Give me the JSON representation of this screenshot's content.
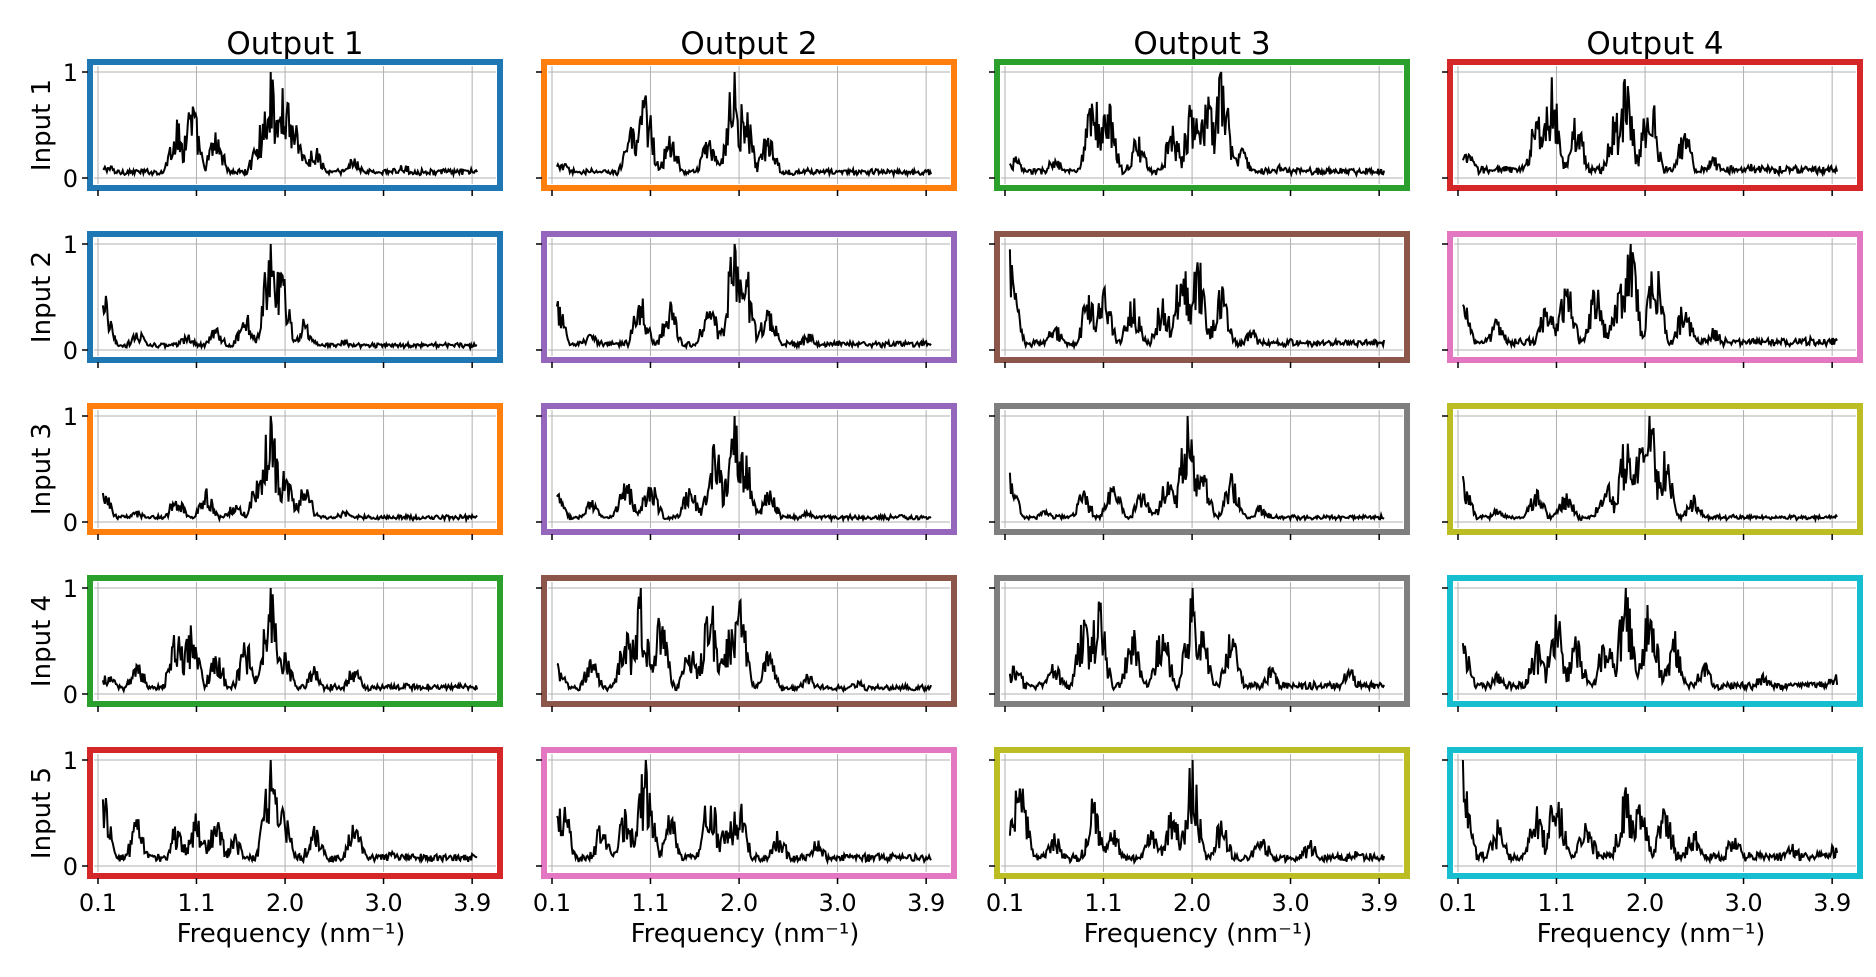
{
  "figure": {
    "xlabel": "Frequency (nm⁻¹)",
    "ylabel_prefix": "Input",
    "col_titles": [
      "Output 1",
      "Output 2",
      "Output 3",
      "Output 4"
    ],
    "row_labels": [
      "Input 1",
      "Input 2",
      "Input 3",
      "Input 4",
      "Input 5"
    ],
    "xticks": [
      "0.1",
      "1.1",
      "2.0",
      "3.0",
      "3.9"
    ],
    "yticks": [
      "0",
      "1"
    ]
  },
  "colors": {
    "blue": "#1f77b4",
    "orange": "#ff7f0e",
    "green": "#2ca02c",
    "red": "#d62728",
    "purple": "#9467bd",
    "brown": "#8c564b",
    "pink": "#e377c2",
    "gray": "#7f7f7f",
    "olive": "#bcbd22",
    "cyan": "#17becf",
    "line": "#000000",
    "grid": "#b0b0b0"
  },
  "chart_data": {
    "type": "line",
    "grid": true,
    "xlim": [
      0.1,
      4.0
    ],
    "ylim": [
      0,
      1
    ],
    "x_tick_values": [
      0.1,
      1.1,
      2.0,
      3.0,
      3.9
    ],
    "panel_border_colors": [
      [
        "blue",
        "orange",
        "green",
        "red"
      ],
      [
        "blue",
        "purple",
        "brown",
        "pink"
      ],
      [
        "orange",
        "purple",
        "gray",
        "olive"
      ],
      [
        "green",
        "brown",
        "gray",
        "cyan"
      ],
      [
        "red",
        "pink",
        "olive",
        "cyan"
      ]
    ],
    "panels": [
      [
        {
          "peaks": [
            [
              0.2,
              0.12
            ],
            [
              0.9,
              0.55
            ],
            [
              1.05,
              0.75
            ],
            [
              1.3,
              0.45
            ],
            [
              1.75,
              0.5
            ],
            [
              1.85,
              1.0
            ],
            [
              2.0,
              0.95
            ],
            [
              2.1,
              0.6
            ],
            [
              2.3,
              0.3
            ],
            [
              2.7,
              0.2
            ],
            [
              3.2,
              0.12
            ]
          ],
          "base": 0.07
        },
        {
          "peaks": [
            [
              0.2,
              0.15
            ],
            [
              0.9,
              0.5
            ],
            [
              1.05,
              0.8
            ],
            [
              1.3,
              0.4
            ],
            [
              1.7,
              0.45
            ],
            [
              1.95,
              1.0
            ],
            [
              2.05,
              0.75
            ],
            [
              2.3,
              0.45
            ],
            [
              2.7,
              0.1
            ]
          ],
          "base": 0.07
        },
        {
          "peaks": [
            [
              0.2,
              0.2
            ],
            [
              0.6,
              0.2
            ],
            [
              1.0,
              0.85
            ],
            [
              1.15,
              0.75
            ],
            [
              1.45,
              0.4
            ],
            [
              1.8,
              0.5
            ],
            [
              2.0,
              0.75
            ],
            [
              2.15,
              0.85
            ],
            [
              2.3,
              1.0
            ],
            [
              2.5,
              0.3
            ],
            [
              2.9,
              0.12
            ]
          ],
          "base": 0.08
        },
        {
          "peaks": [
            [
              0.2,
              0.25
            ],
            [
              0.9,
              0.6
            ],
            [
              1.05,
              0.95
            ],
            [
              1.3,
              0.6
            ],
            [
              1.7,
              0.65
            ],
            [
              1.8,
              0.95
            ],
            [
              2.05,
              0.9
            ],
            [
              2.4,
              0.45
            ],
            [
              2.7,
              0.2
            ],
            [
              3.1,
              0.12
            ]
          ],
          "base": 0.1
        }
      ],
      [
        {
          "peaks": [
            [
              0.15,
              0.55
            ],
            [
              0.5,
              0.18
            ],
            [
              1.0,
              0.15
            ],
            [
              1.3,
              0.2
            ],
            [
              1.6,
              0.35
            ],
            [
              1.85,
              1.0
            ],
            [
              1.95,
              0.95
            ],
            [
              2.2,
              0.3
            ],
            [
              2.6,
              0.1
            ]
          ],
          "base": 0.05
        },
        {
          "peaks": [
            [
              0.15,
              0.5
            ],
            [
              0.5,
              0.15
            ],
            [
              1.0,
              0.5
            ],
            [
              1.3,
              0.45
            ],
            [
              1.7,
              0.5
            ],
            [
              1.95,
              1.0
            ],
            [
              2.05,
              0.95
            ],
            [
              2.3,
              0.45
            ],
            [
              2.7,
              0.15
            ]
          ],
          "base": 0.07
        },
        {
          "peaks": [
            [
              0.15,
              0.95
            ],
            [
              0.6,
              0.25
            ],
            [
              0.95,
              0.55
            ],
            [
              1.1,
              0.65
            ],
            [
              1.4,
              0.5
            ],
            [
              1.7,
              0.5
            ],
            [
              1.9,
              0.9
            ],
            [
              2.05,
              0.95
            ],
            [
              2.3,
              0.7
            ],
            [
              2.6,
              0.2
            ],
            [
              3.0,
              0.1
            ]
          ],
          "base": 0.08
        },
        {
          "peaks": [
            [
              0.15,
              0.5
            ],
            [
              0.5,
              0.3
            ],
            [
              1.0,
              0.45
            ],
            [
              1.2,
              0.7
            ],
            [
              1.5,
              0.6
            ],
            [
              1.75,
              0.8
            ],
            [
              1.85,
              1.0
            ],
            [
              2.1,
              0.85
            ],
            [
              2.4,
              0.45
            ],
            [
              2.7,
              0.2
            ]
          ],
          "base": 0.1
        }
      ],
      [
        {
          "peaks": [
            [
              0.15,
              0.35
            ],
            [
              0.5,
              0.1
            ],
            [
              0.9,
              0.25
            ],
            [
              1.2,
              0.3
            ],
            [
              1.5,
              0.2
            ],
            [
              1.75,
              0.6
            ],
            [
              1.85,
              1.0
            ],
            [
              2.0,
              0.5
            ],
            [
              2.2,
              0.35
            ],
            [
              2.6,
              0.1
            ]
          ],
          "base": 0.05
        },
        {
          "peaks": [
            [
              0.15,
              0.3
            ],
            [
              0.5,
              0.2
            ],
            [
              0.85,
              0.4
            ],
            [
              1.1,
              0.4
            ],
            [
              1.5,
              0.35
            ],
            [
              1.75,
              0.8
            ],
            [
              1.95,
              1.0
            ],
            [
              2.05,
              0.7
            ],
            [
              2.3,
              0.3
            ],
            [
              2.7,
              0.1
            ]
          ],
          "base": 0.05
        },
        {
          "peaks": [
            [
              0.15,
              0.55
            ],
            [
              0.5,
              0.1
            ],
            [
              0.9,
              0.3
            ],
            [
              1.2,
              0.35
            ],
            [
              1.5,
              0.3
            ],
            [
              1.75,
              0.45
            ],
            [
              1.95,
              1.0
            ],
            [
              2.1,
              0.55
            ],
            [
              2.4,
              0.45
            ],
            [
              2.7,
              0.15
            ]
          ],
          "base": 0.05
        },
        {
          "peaks": [
            [
              0.15,
              0.5
            ],
            [
              0.5,
              0.12
            ],
            [
              0.9,
              0.3
            ],
            [
              1.2,
              0.3
            ],
            [
              1.6,
              0.4
            ],
            [
              1.8,
              0.8
            ],
            [
              1.95,
              0.75
            ],
            [
              2.05,
              1.0
            ],
            [
              2.2,
              0.7
            ],
            [
              2.5,
              0.25
            ]
          ],
          "base": 0.05
        }
      ],
      [
        {
          "peaks": [
            [
              0.2,
              0.2
            ],
            [
              0.5,
              0.3
            ],
            [
              0.9,
              0.6
            ],
            [
              1.05,
              0.65
            ],
            [
              1.3,
              0.4
            ],
            [
              1.6,
              0.5
            ],
            [
              1.85,
              1.0
            ],
            [
              2.0,
              0.4
            ],
            [
              2.3,
              0.25
            ],
            [
              2.7,
              0.25
            ],
            [
              3.2,
              0.1
            ]
          ],
          "base": 0.08
        },
        {
          "peaks": [
            [
              0.15,
              0.35
            ],
            [
              0.5,
              0.35
            ],
            [
              0.85,
              0.6
            ],
            [
              1.0,
              1.0
            ],
            [
              1.2,
              0.8
            ],
            [
              1.5,
              0.45
            ],
            [
              1.7,
              0.95
            ],
            [
              1.9,
              0.65
            ],
            [
              2.0,
              0.9
            ],
            [
              2.3,
              0.4
            ],
            [
              2.7,
              0.2
            ],
            [
              3.2,
              0.12
            ]
          ],
          "base": 0.07
        },
        {
          "peaks": [
            [
              0.2,
              0.3
            ],
            [
              0.6,
              0.3
            ],
            [
              0.9,
              0.7
            ],
            [
              1.05,
              0.9
            ],
            [
              1.4,
              0.6
            ],
            [
              1.7,
              0.7
            ],
            [
              2.0,
              1.0
            ],
            [
              2.1,
              0.6
            ],
            [
              2.4,
              0.6
            ],
            [
              2.8,
              0.25
            ],
            [
              3.6,
              0.25
            ]
          ],
          "base": 0.1
        },
        {
          "peaks": [
            [
              0.15,
              0.55
            ],
            [
              0.5,
              0.2
            ],
            [
              0.9,
              0.5
            ],
            [
              1.1,
              0.8
            ],
            [
              1.3,
              0.55
            ],
            [
              1.6,
              0.6
            ],
            [
              1.8,
              1.0
            ],
            [
              2.05,
              0.9
            ],
            [
              2.3,
              0.6
            ],
            [
              2.6,
              0.3
            ],
            [
              3.2,
              0.2
            ],
            [
              3.9,
              0.2
            ]
          ],
          "base": 0.1
        }
      ],
      [
        {
          "peaks": [
            [
              0.15,
              0.8
            ],
            [
              0.5,
              0.45
            ],
            [
              0.9,
              0.4
            ],
            [
              1.1,
              0.5
            ],
            [
              1.3,
              0.45
            ],
            [
              1.5,
              0.3
            ],
            [
              1.85,
              1.0
            ],
            [
              2.0,
              0.6
            ],
            [
              2.3,
              0.4
            ],
            [
              2.7,
              0.45
            ],
            [
              3.1,
              0.15
            ]
          ],
          "base": 0.1
        },
        {
          "peaks": [
            [
              0.2,
              0.75
            ],
            [
              0.6,
              0.4
            ],
            [
              0.85,
              0.55
            ],
            [
              1.05,
              1.0
            ],
            [
              1.3,
              0.5
            ],
            [
              1.7,
              0.75
            ],
            [
              1.9,
              0.55
            ],
            [
              2.0,
              0.65
            ],
            [
              2.4,
              0.35
            ],
            [
              2.8,
              0.25
            ],
            [
              3.4,
              0.15
            ]
          ],
          "base": 0.1
        },
        {
          "peaks": [
            [
              0.25,
              0.95
            ],
            [
              0.6,
              0.3
            ],
            [
              1.0,
              0.65
            ],
            [
              1.2,
              0.35
            ],
            [
              1.6,
              0.35
            ],
            [
              1.8,
              0.55
            ],
            [
              2.0,
              1.0
            ],
            [
              2.3,
              0.45
            ],
            [
              2.7,
              0.35
            ],
            [
              3.2,
              0.25
            ],
            [
              3.7,
              0.15
            ]
          ],
          "base": 0.1
        },
        {
          "peaks": [
            [
              0.15,
              1.0
            ],
            [
              0.5,
              0.45
            ],
            [
              0.9,
              0.55
            ],
            [
              1.1,
              0.8
            ],
            [
              1.4,
              0.5
            ],
            [
              1.8,
              0.75
            ],
            [
              1.95,
              0.6
            ],
            [
              2.2,
              0.6
            ],
            [
              2.5,
              0.4
            ],
            [
              2.9,
              0.3
            ],
            [
              3.5,
              0.2
            ],
            [
              3.9,
              0.2
            ]
          ],
          "base": 0.12
        }
      ]
    ]
  }
}
